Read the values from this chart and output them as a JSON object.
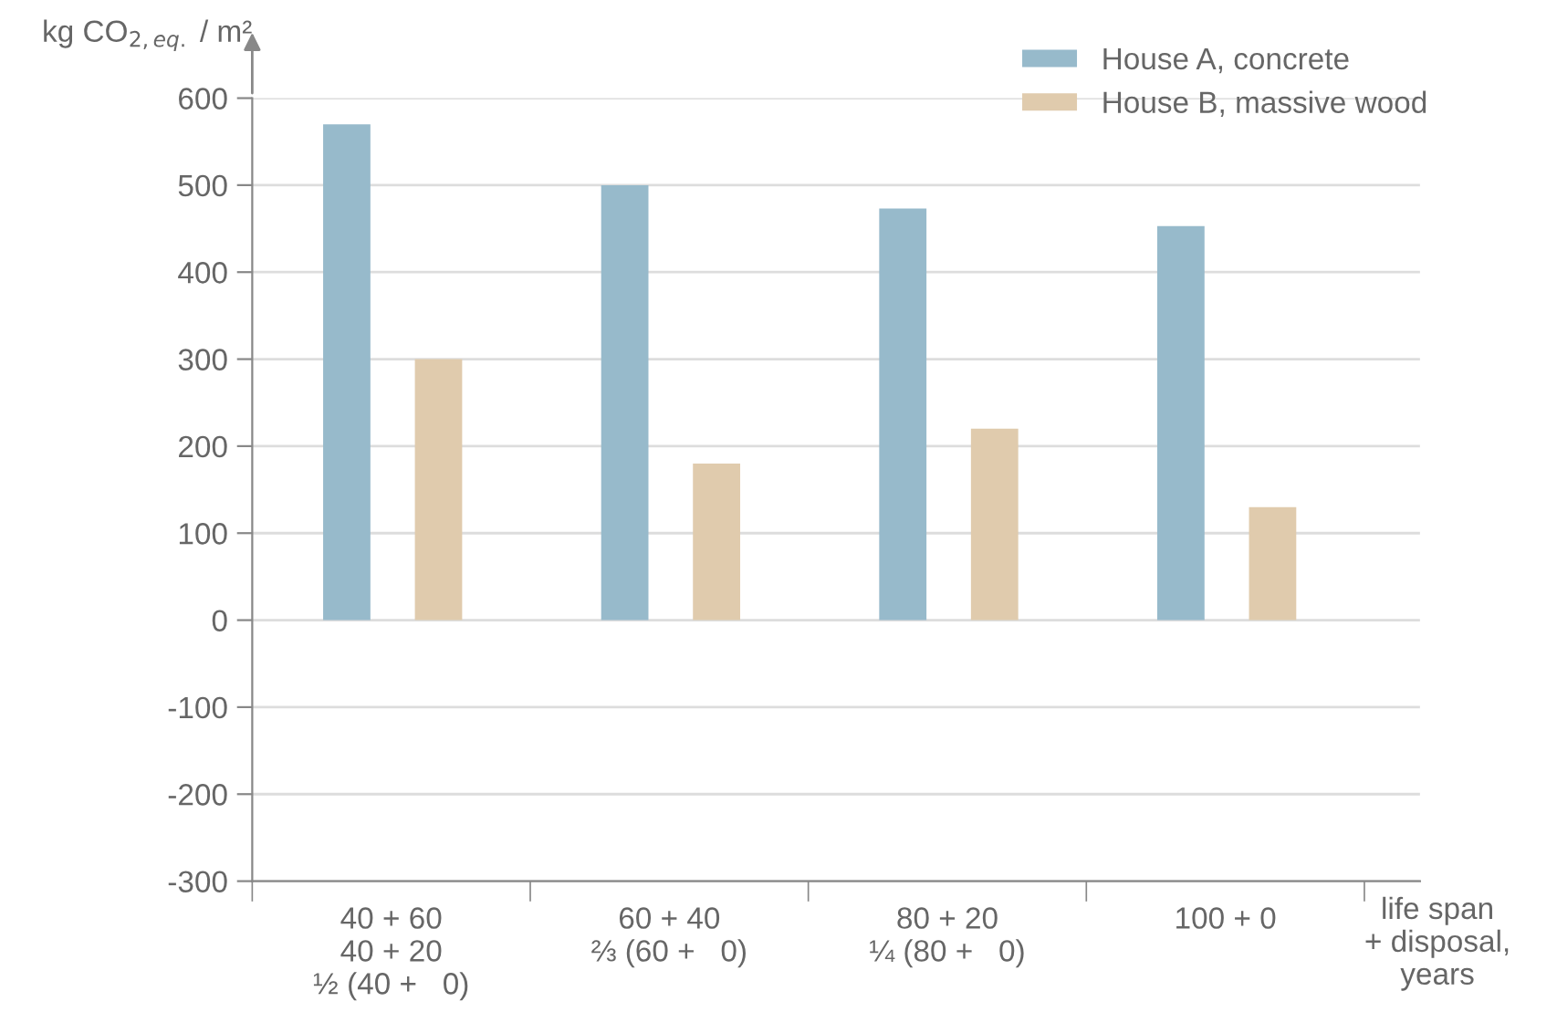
{
  "chart_data": {
    "type": "bar",
    "ylabel": "kg CO$_{2,eq.}$ / m²",
    "xlabel": "life span\n+ disposal,\nyears",
    "categories": [
      "40 + 60\n40 + 20\n½ (40 +   0)",
      "60 + 40\n⅔ (60 +   0)",
      "80 + 20\n¼ (80 +   0)",
      "100 + 0"
    ],
    "series": [
      {
        "name": "House A, concrete",
        "color": "#97bacb",
        "values": [
          570,
          500,
          473,
          453
        ]
      },
      {
        "name": "House B, massive wood",
        "color": "#e0cbad",
        "values": [
          300,
          180,
          220,
          130
        ]
      }
    ],
    "ylim": [
      -300,
      600
    ],
    "yticks": [
      -300,
      -200,
      -100,
      0,
      100,
      200,
      300,
      400,
      500,
      600
    ],
    "grid": "y",
    "legend": "top right"
  }
}
